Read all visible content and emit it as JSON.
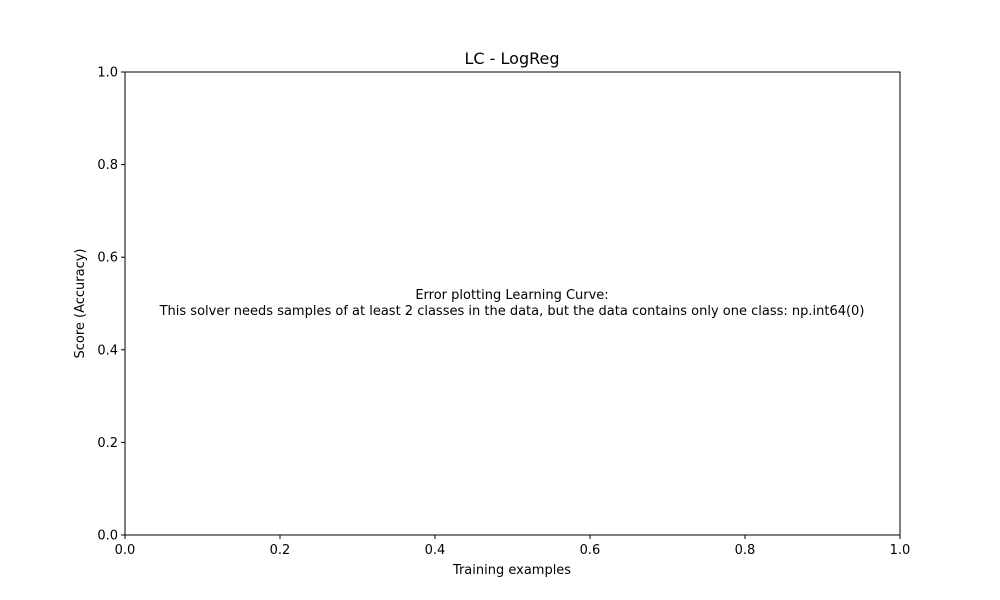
{
  "chart_data": {
    "type": "line",
    "title": "LC - LogReg",
    "xlabel": "Training examples",
    "ylabel": "Score (Accuracy)",
    "xlim": [
      0,
      1
    ],
    "ylim": [
      0,
      1
    ],
    "x_ticks": [
      0,
      0.2,
      0.4,
      0.6,
      0.8,
      1
    ],
    "y_ticks": [
      0,
      0.2,
      0.4,
      0.6,
      0.8,
      1
    ],
    "x_tick_labels": [
      "0.0",
      "0.2",
      "0.4",
      "0.6",
      "0.8",
      "1.0"
    ],
    "y_tick_labels": [
      "0.0",
      "0.2",
      "0.4",
      "0.6",
      "0.8",
      "1.0"
    ],
    "grid": false,
    "series": [],
    "annotation": {
      "line1": "Error plotting Learning Curve:",
      "line2": "This solver needs samples of at least 2 classes in the data, but the data contains only one class: np.int64(0)"
    }
  }
}
